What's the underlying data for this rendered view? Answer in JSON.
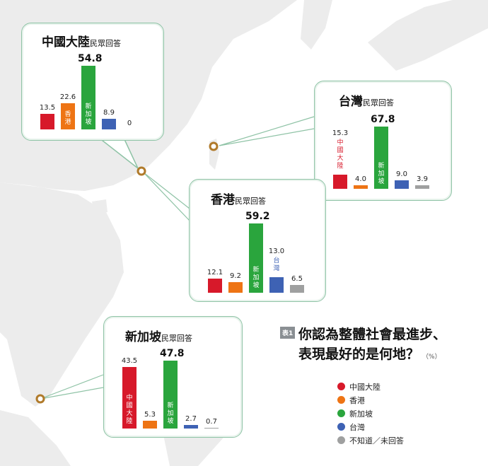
{
  "colors": {
    "中國大陸": "#d7192a",
    "香港": "#ee7414",
    "新加坡": "#2aa53d",
    "台灣": "#3e62b4",
    "不知道／未回答": "#9fa0a0"
  },
  "heading": {
    "tag": "表1",
    "line1": "你認為整體社會最進步、",
    "line2": "表現最好的是何地？",
    "unit": "（%）"
  },
  "legend": [
    "中國大陸",
    "香港",
    "新加坡",
    "台灣",
    "不知道／未回答"
  ],
  "chart_data": [
    {
      "type": "bar",
      "title": "中國大陸",
      "subtitle": "民眾回答",
      "categories": [
        "中國大陸",
        "香港",
        "新加坡",
        "台灣",
        "不知道／未回答"
      ],
      "values": [
        13.5,
        22.6,
        54.8,
        8.9,
        0
      ],
      "value_labels": [
        "13.5",
        "22.6",
        "54.8",
        "8.9",
        "0"
      ],
      "inbar_labels": [
        "",
        "香港",
        "新加坡",
        "",
        ""
      ]
    },
    {
      "type": "bar",
      "title": "台灣",
      "subtitle": "民眾回答",
      "categories": [
        "中國大陸",
        "香港",
        "新加坡",
        "台灣",
        "不知道／未回答"
      ],
      "values": [
        15.3,
        4.0,
        67.8,
        9.0,
        3.9
      ],
      "value_labels": [
        "15.3",
        "4.0",
        "67.8",
        "9.0",
        "3.9"
      ],
      "inbar_labels": [
        "中國大陸",
        "",
        "新加坡",
        "",
        ""
      ]
    },
    {
      "type": "bar",
      "title": "香港",
      "subtitle": "民眾回答",
      "categories": [
        "中國大陸",
        "香港",
        "新加坡",
        "台灣",
        "不知道／未回答"
      ],
      "values": [
        12.1,
        9.2,
        59.2,
        13.0,
        6.5
      ],
      "value_labels": [
        "12.1",
        "9.2",
        "59.2",
        "13.0",
        "6.5"
      ],
      "inbar_labels": [
        "",
        "",
        "新加坡",
        "台灣",
        ""
      ]
    },
    {
      "type": "bar",
      "title": "新加坡",
      "subtitle": "民眾回答",
      "categories": [
        "中國大陸",
        "香港",
        "新加坡",
        "台灣",
        "不知道／未回答"
      ],
      "values": [
        43.5,
        5.3,
        47.8,
        2.7,
        0.7
      ],
      "value_labels": [
        "43.5",
        "5.3",
        "47.8",
        "2.7",
        "0.7"
      ],
      "inbar_labels": [
        "中國大陸",
        "",
        "新加坡",
        "",
        ""
      ]
    }
  ]
}
